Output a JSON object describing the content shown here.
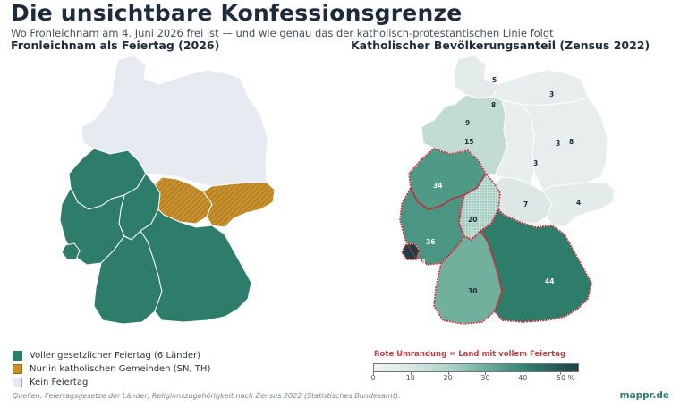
{
  "title": "Die unsichtbare Konfessionsgrenze",
  "subtitle": "Wo Fronleichnam am 4. Juni 2026 frei ist — und wie genau das der katholisch-protestantischen Linie folgt",
  "left_map": {
    "title": "Fronleichnam als Feiertag (2026)",
    "legend": [
      {
        "label": "Voller gesetzlicher Feiertag (6 Länder)",
        "color": "#2e7d6b"
      },
      {
        "label": "Nur in katholischen Gemeinden (SN, TH)",
        "color": "#c8912e"
      },
      {
        "label": "Kein Feiertag",
        "color": "#e6ebf2"
      }
    ]
  },
  "right_map": {
    "title": "Katholischer Bevölkerungsanteil (Zensus 2022)",
    "note": "Rote Umrandung = Land mit vollem Feiertag",
    "colorbar": {
      "min": 0,
      "max": 55,
      "ticks": [
        "0",
        "10",
        "20",
        "30",
        "40",
        "50 %"
      ],
      "tick_values": [
        0,
        10,
        20,
        30,
        40,
        50
      ]
    },
    "values": [
      {
        "state": "SH",
        "value": "5",
        "share": 5
      },
      {
        "state": "MV",
        "value": "3",
        "share": 3
      },
      {
        "state": "HH",
        "value": "8",
        "share": 8
      },
      {
        "state": "HB",
        "value": "9",
        "share": 9
      },
      {
        "state": "NI",
        "value": "15",
        "share": 15
      },
      {
        "state": "BE",
        "value": "8",
        "share": 8
      },
      {
        "state": "BB",
        "value": "3",
        "share": 3
      },
      {
        "state": "ST",
        "value": "3",
        "share": 3
      },
      {
        "state": "NW",
        "value": "34",
        "share": 34
      },
      {
        "state": "HE",
        "value": "20",
        "share": 20
      },
      {
        "state": "TH",
        "value": "7",
        "share": 7
      },
      {
        "state": "SN",
        "value": "4",
        "share": 4
      },
      {
        "state": "RP",
        "value": "36",
        "share": 36
      },
      {
        "state": "SL",
        "value": "51",
        "share": 51
      },
      {
        "state": "BW",
        "value": "30",
        "share": 30
      },
      {
        "state": "BY",
        "value": "44",
        "share": 44
      }
    ]
  },
  "source": "Quellen: Feiertagsgesetze der Länder; Religionszugehörigkeit nach Zensus 2022 (Statistisches Bundesamt).",
  "brand": "mappr.de"
}
